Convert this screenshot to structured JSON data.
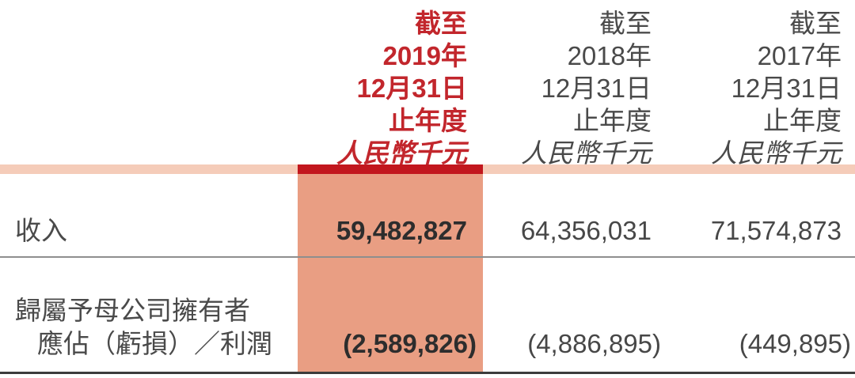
{
  "colors": {
    "accent_red_text": "#c2262c",
    "highlight_top_bar": "#c2171e",
    "highlight_column_bg": "#e99e83",
    "unit_band_bg": "#f5ccb9",
    "divider_gray": "#8e8e8e",
    "bottom_rule_dark": "#3c3c3c"
  },
  "table": {
    "columns": [
      {
        "id": "fy2019",
        "highlighted": true,
        "header_lines": [
          "截至",
          "2019年",
          "12月31日",
          "止年度",
          "人民幣千元"
        ]
      },
      {
        "id": "fy2018",
        "highlighted": false,
        "header_lines": [
          "截至",
          "2018年",
          "12月31日",
          "止年度",
          "人民幣千元"
        ]
      },
      {
        "id": "fy2017",
        "highlighted": false,
        "header_lines": [
          "截至",
          "2017年",
          "12月31日",
          "止年度",
          "人民幣千元"
        ]
      }
    ],
    "rows": [
      {
        "label_lines": [
          "收入"
        ],
        "values": [
          "59,482,827",
          "64,356,031",
          "71,574,873"
        ]
      },
      {
        "label_lines": [
          "歸屬予母公司擁有者",
          "應佔（虧損）／利潤"
        ],
        "values": [
          "(2,589,826)",
          "(4,886,895)",
          "(449,895)"
        ]
      }
    ]
  }
}
